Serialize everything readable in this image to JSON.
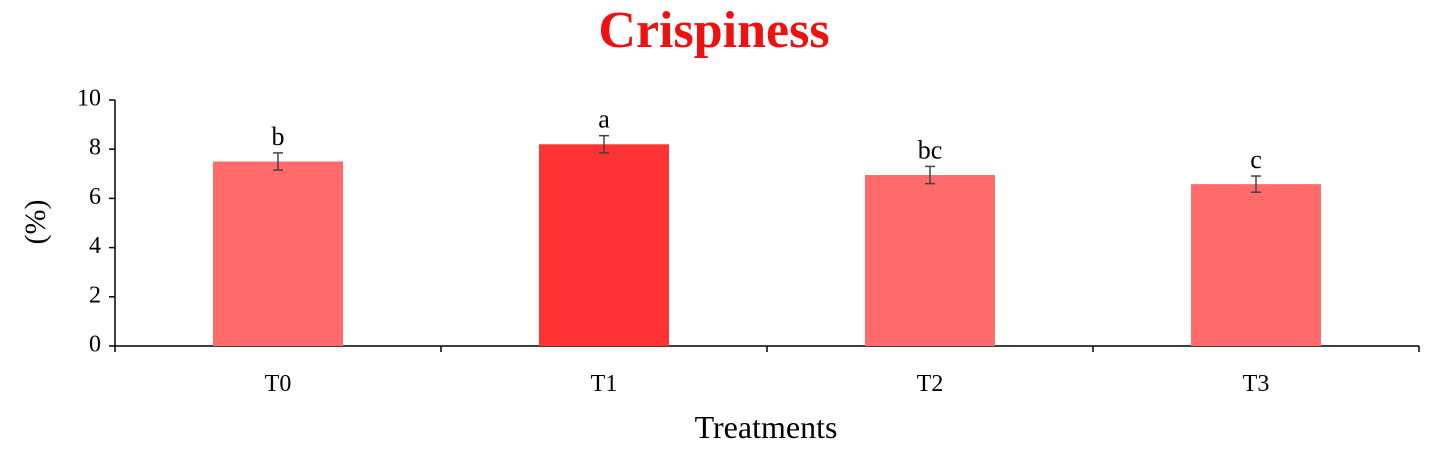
{
  "chart_data": {
    "type": "bar",
    "title": "Crispiness",
    "xlabel": "Treatments",
    "ylabel": "(%)",
    "categories": [
      "T0",
      "T1",
      "T2",
      "T3"
    ],
    "values": [
      7.5,
      8.2,
      6.95,
      6.58
    ],
    "errors": [
      0.35,
      0.35,
      0.35,
      0.33
    ],
    "significance_letters": [
      "b",
      "a",
      "bc",
      "c"
    ],
    "ylim": [
      0,
      10
    ],
    "yticks": [
      0,
      2,
      4,
      6,
      8,
      10
    ],
    "grid": false,
    "legend": "none",
    "colors": {
      "title": "#ee1111",
      "bar": "#ff6b6b",
      "bar_highlight": "#ff3333",
      "axis": "#000000",
      "error_bar": "#444444"
    },
    "highlight_index": 1
  }
}
